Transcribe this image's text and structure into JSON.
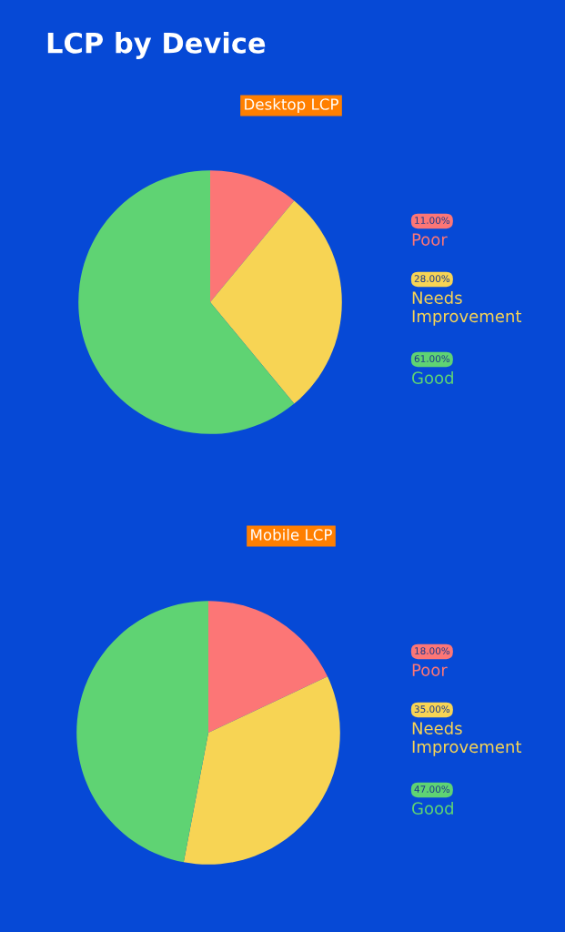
{
  "chart_data": [
    {
      "type": "pie",
      "title": "LCP by Device",
      "subtitle": "Desktop LCP",
      "categories": [
        "Poor",
        "Needs\nImprovement",
        "Good"
      ],
      "values": [
        11,
        28,
        61
      ],
      "colors": [
        "#fc7676",
        "#f7d454",
        "#5fd373"
      ],
      "value_labels": [
        "11.00%",
        "28.00%",
        "61.00%"
      ],
      "legend": "right"
    },
    {
      "type": "pie",
      "subtitle": "Mobile LCP",
      "categories": [
        "Poor",
        "Needs\nImprovement",
        "Good"
      ],
      "values": [
        18,
        35,
        47
      ],
      "colors": [
        "#fc7676",
        "#f7d454",
        "#5fd373"
      ],
      "value_labels": [
        "18.00%",
        "35.00%",
        "47.00%"
      ],
      "legend": "right"
    }
  ]
}
